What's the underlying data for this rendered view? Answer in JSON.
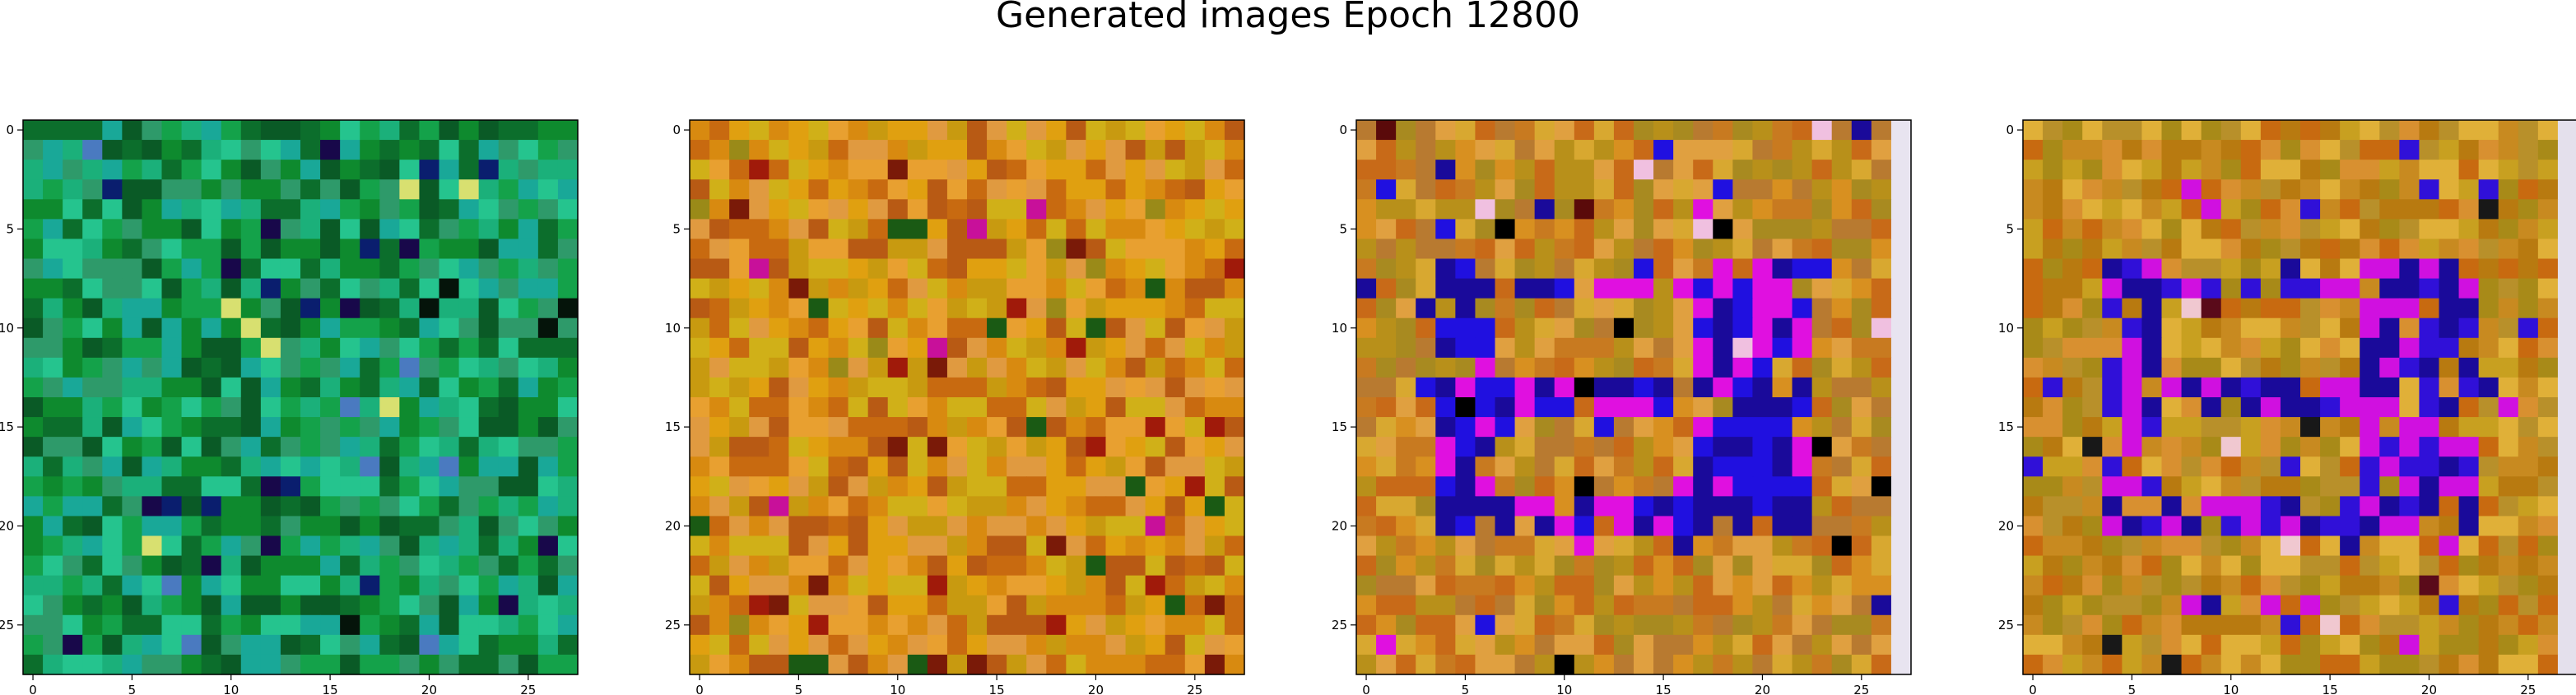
{
  "figure": {
    "title": "Generated images Epoch 12800"
  },
  "colors": {
    "background": "#ffffff",
    "axis": "#000000"
  },
  "chart_data": [
    {
      "type": "heatmap",
      "grid": [
        28,
        28
      ],
      "xlim": [
        -0.5,
        27.5
      ],
      "ylim": [
        27.5,
        -0.5
      ],
      "x_ticks": [
        0,
        5,
        10,
        15,
        20,
        25
      ],
      "y_ticks": [
        0,
        5,
        10,
        15,
        20,
        25
      ],
      "xlabel": "",
      "ylabel": "",
      "grid_lines": false,
      "palette": [
        "#0e8a2e",
        "#14a24a",
        "#1bb07a",
        "#19a898",
        "#0c6e2c",
        "#2e9a6a",
        "#0a5a26",
        "#25c48e"
      ],
      "accents": [
        "#0a1e6e",
        "#05140a",
        "#d8e070",
        "#4a7ac0",
        "#18084a"
      ],
      "seed": 11
    },
    {
      "type": "heatmap",
      "grid": [
        28,
        28
      ],
      "xlim": [
        -0.5,
        27.5
      ],
      "ylim": [
        27.5,
        -0.5
      ],
      "x_ticks": [
        0,
        5,
        10,
        15,
        20,
        25
      ],
      "y_ticks": [
        0,
        5,
        10,
        15,
        20,
        25
      ],
      "xlabel": "",
      "ylabel": "",
      "grid_lines": false,
      "palette": [
        "#d88a10",
        "#e0a010",
        "#c86a10",
        "#e8a030",
        "#b85a14",
        "#c89a10",
        "#e09a40",
        "#d0b018"
      ],
      "accents": [
        "#7a1a08",
        "#9a8a18",
        "#1a5a14",
        "#c8109a",
        "#a01a0a"
      ],
      "seed": 23
    },
    {
      "type": "heatmap",
      "grid": [
        28,
        28
      ],
      "xlim": [
        -0.5,
        27.5
      ],
      "ylim": [
        27.5,
        -0.5
      ],
      "x_ticks": [
        0,
        5,
        10,
        15,
        20,
        25
      ],
      "y_ticks": [
        0,
        5,
        10,
        15,
        20,
        25
      ],
      "xlabel": "",
      "ylabel": "",
      "grid_lines": false,
      "palette": [
        "#d89020",
        "#c87a20",
        "#b8901a",
        "#e0a040",
        "#a88a20",
        "#c86a18",
        "#d8a830",
        "#b87a30"
      ],
      "accents": [
        "#2010e0",
        "#1a0a9a",
        "#e010e0",
        "#f0c0e0",
        "#5a0a0a",
        "#000000"
      ],
      "seed": 37,
      "digit_pattern": true,
      "last_column": "#e8e4f0"
    },
    {
      "type": "heatmap",
      "grid": [
        28,
        28
      ],
      "xlim": [
        -0.5,
        27.5
      ],
      "ylim": [
        27.5,
        -0.5
      ],
      "x_ticks": [
        0,
        5,
        10,
        15,
        20,
        25
      ],
      "y_ticks": [
        0,
        5,
        10,
        15,
        20,
        25
      ],
      "xlabel": "",
      "ylabel": "",
      "grid_lines": false,
      "palette": [
        "#c88a20",
        "#b87a10",
        "#c8a020",
        "#d89030",
        "#a88a18",
        "#c86a10",
        "#e0b038",
        "#b8902a"
      ],
      "accents": [
        "#3010d8",
        "#1a0a9a",
        "#d010e0",
        "#f0c8d0",
        "#5a0a1a",
        "#181818"
      ],
      "seed": 53,
      "digit_pattern": true,
      "last_column": "#e4e0ec"
    }
  ]
}
